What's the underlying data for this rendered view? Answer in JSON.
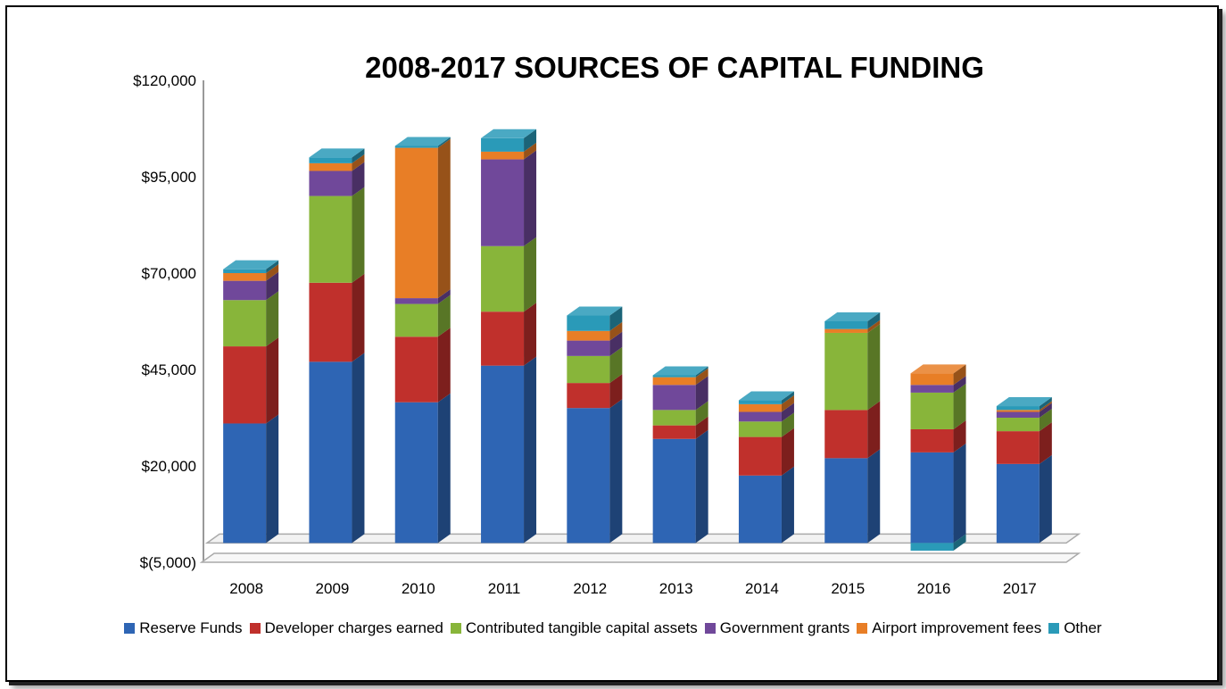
{
  "chart_data": {
    "type": "bar",
    "stacked": true,
    "three_d": true,
    "title": "2008-2017 SOURCES OF CAPITAL FUNDING",
    "xlabel": "",
    "ylabel": "",
    "ylim": [
      -5000,
      120000
    ],
    "y_ticks": [
      -5000,
      20000,
      45000,
      70000,
      95000,
      120000
    ],
    "y_tick_labels": [
      "$(5,000)",
      "$20,000",
      "$45,000",
      "$70,000",
      "$95,000",
      "$120,000"
    ],
    "categories": [
      "2008",
      "2009",
      "2010",
      "2011",
      "2012",
      "2013",
      "2014",
      "2015",
      "2016",
      "2017"
    ],
    "legend_position": "bottom",
    "series": [
      {
        "name": "Reserve Funds",
        "color": "#2e65b4",
        "values": [
          31000,
          47000,
          36500,
          46000,
          35000,
          27000,
          17500,
          22000,
          23500,
          20500
        ]
      },
      {
        "name": "Developer charges earned",
        "color": "#c0302c",
        "values": [
          20000,
          20500,
          17000,
          14000,
          6500,
          3500,
          10000,
          12500,
          6000,
          8500
        ]
      },
      {
        "name": "Contributed tangible capital assets",
        "color": "#88b53a",
        "values": [
          12000,
          22500,
          8500,
          17000,
          7000,
          4000,
          4000,
          20000,
          9500,
          3500
        ]
      },
      {
        "name": "Government grants",
        "color": "#70489a",
        "values": [
          5000,
          6500,
          1500,
          22500,
          4000,
          6500,
          2500,
          0,
          2000,
          1500
        ]
      },
      {
        "name": "Airport improvement fees",
        "color": "#e87e26",
        "values": [
          2000,
          2000,
          39000,
          2000,
          2500,
          2000,
          2000,
          1000,
          3000,
          500
        ]
      },
      {
        "name": "Other",
        "color": "#2a9ab8",
        "values": [
          1000,
          1500,
          500,
          3500,
          4000,
          500,
          1000,
          2000,
          -2000,
          1000
        ]
      }
    ]
  }
}
